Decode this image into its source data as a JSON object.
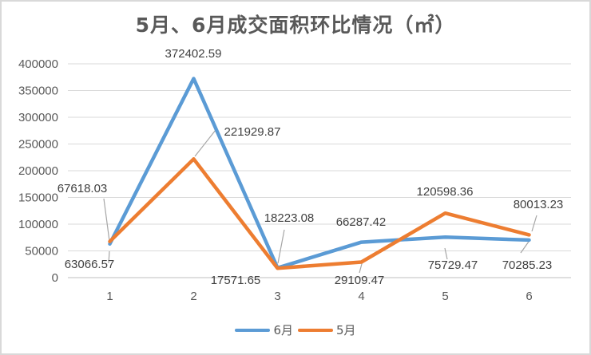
{
  "chart_data": {
    "type": "line",
    "title": "5月、6月成交面积环比情况（㎡）",
    "xlabel": "",
    "ylabel": "",
    "categories": [
      "1",
      "2",
      "3",
      "4",
      "5",
      "6"
    ],
    "series": [
      {
        "name": "6月",
        "color": "#5b9bd5",
        "values": [
          63066.57,
          372402.59,
          18223.08,
          66287.42,
          75729.47,
          70285.23
        ]
      },
      {
        "name": "5月",
        "color": "#ed7d31",
        "values": [
          67618.03,
          221929.87,
          17571.65,
          29109.47,
          120598.36,
          80013.23
        ]
      }
    ],
    "ylim": [
      0,
      400000
    ],
    "yticks": [
      "0",
      "50000",
      "100000",
      "150000",
      "200000",
      "250000",
      "300000",
      "350000",
      "400000"
    ],
    "grid": true,
    "legend_position": "bottom"
  },
  "title": "5月、6月成交面积环比情况（㎡）",
  "legend": [
    {
      "label": "6月",
      "color": "#5b9bd5"
    },
    {
      "label": "5月",
      "color": "#ed7d31"
    }
  ],
  "labels": {
    "s6": [
      "63066.57",
      "372402.59",
      "18223.08",
      "66287.42",
      "75729.47",
      "70285.23"
    ],
    "s5": [
      "67618.03",
      "221929.87",
      "17571.65",
      "29109.47",
      "120598.36",
      "80013.23"
    ]
  }
}
